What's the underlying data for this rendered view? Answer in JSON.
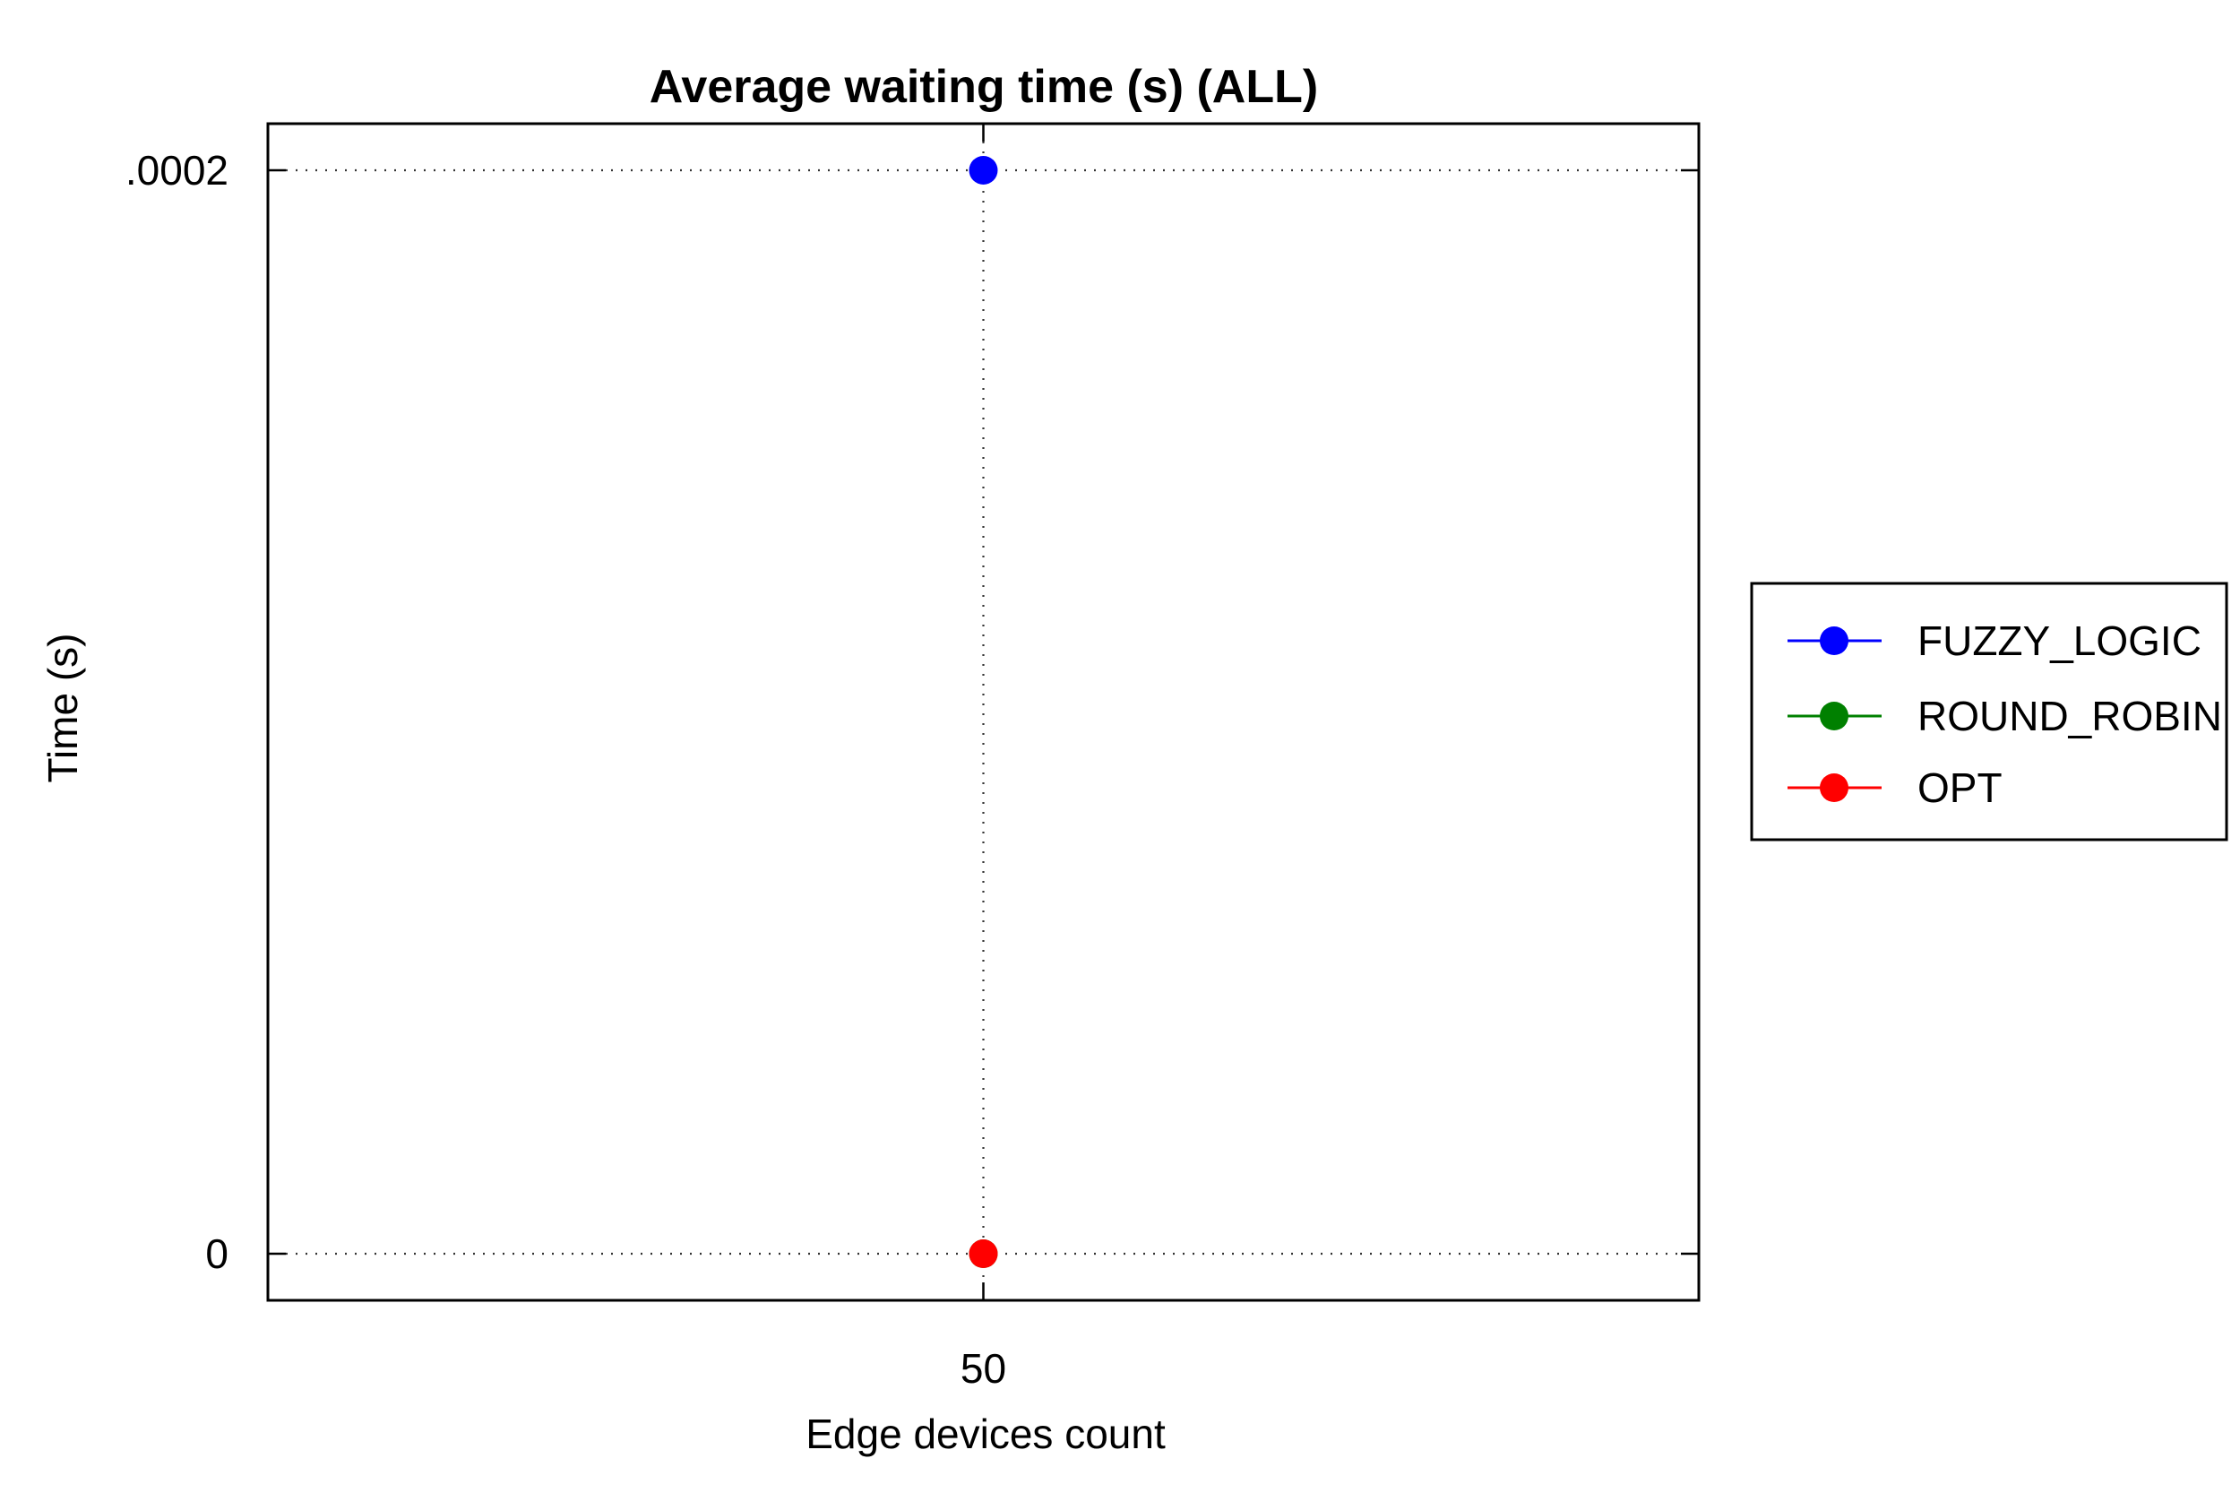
{
  "chart_data": {
    "type": "line",
    "title": "Average waiting time (s) (ALL)",
    "xlabel": "Edge devices count",
    "ylabel": "Time (s)",
    "categories": [
      "50"
    ],
    "x": [
      50
    ],
    "y_ticks": [
      {
        "value": 0,
        "label": "0"
      },
      {
        "value": 0.0002,
        "label": ".0002"
      }
    ],
    "ylim": [
      -8.6e-06,
      0.0002086
    ],
    "grid": true,
    "legend_position": "right",
    "series": [
      {
        "name": "FUZZY_LOGIC",
        "color": "#0000ff",
        "values": [
          0.0002
        ]
      },
      {
        "name": " ROUND_ROBIN",
        "color": "#008000",
        "values": [
          0
        ]
      },
      {
        "name": "OPT",
        "color": "#ff0000",
        "values": [
          0
        ]
      }
    ]
  }
}
